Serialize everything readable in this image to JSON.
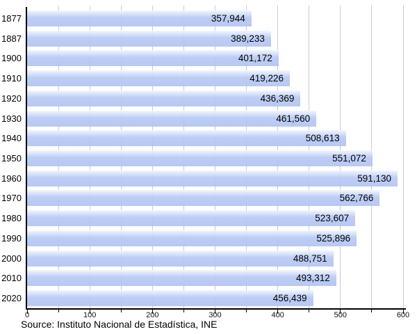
{
  "chart_data": {
    "type": "bar",
    "orientation": "horizontal",
    "title": "",
    "categories": [
      "1877",
      "1887",
      "1900",
      "1910",
      "1920",
      "1930",
      "1940",
      "1950",
      "1960",
      "1970",
      "1980",
      "1990",
      "2000",
      "2010",
      "2020"
    ],
    "values": [
      357944,
      389233,
      401172,
      419226,
      436369,
      461560,
      508613,
      551072,
      591130,
      562766,
      523607,
      525896,
      488751,
      493312,
      456439
    ],
    "value_labels": [
      "357,944",
      "389,233",
      "401,172",
      "419,226",
      "436,369",
      "461,560",
      "508,613",
      "551,072",
      "591,130",
      "562,766",
      "523,607",
      "525,896",
      "488,751",
      "493,312",
      "456,439"
    ],
    "xlabel": "",
    "ylabel": "",
    "xlim": [
      0,
      600
    ],
    "x_ticks": [
      0,
      100,
      200,
      300,
      400,
      500,
      600
    ],
    "x_tick_labels": [
      "0",
      "100",
      "200",
      "300",
      "400",
      "500",
      "600"
    ],
    "x_minor_tick_step": 50,
    "x_value_divisor": 1000,
    "grid": "vertical gridlines every 50, light gray",
    "legend": "none",
    "source_note": "Source: Instituto Nacional de Estadística, INE",
    "colors": {
      "bar_fill": "#b8c9f3",
      "bar_fill_top": "#f2f7fe",
      "gridline": "#cccccc",
      "axis": "#000000",
      "text": "#000000",
      "background": "#ffffff"
    }
  }
}
